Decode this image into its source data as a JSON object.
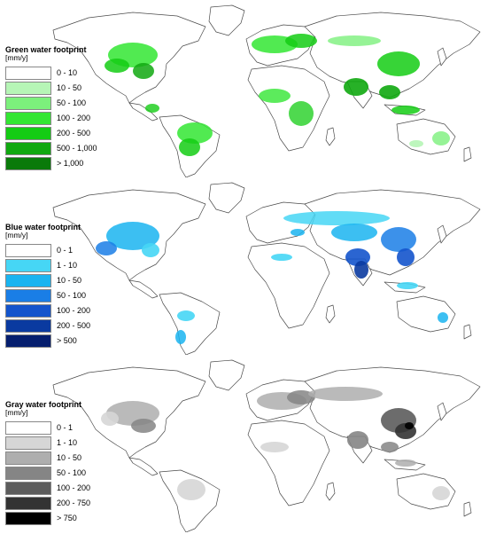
{
  "panels": [
    {
      "key": "green",
      "legend_title": "Green water footprint",
      "legend_unit": "[mm/y]",
      "classes": [
        {
          "label": "0 - 10",
          "color": "#ffffff"
        },
        {
          "label": "10 - 50",
          "color": "#b6f5b6"
        },
        {
          "label": "50 - 100",
          "color": "#7cf07c"
        },
        {
          "label": "100 - 200",
          "color": "#33e633"
        },
        {
          "label": "200 - 500",
          "color": "#14cc14"
        },
        {
          "label": "500 - 1,000",
          "color": "#10a810"
        },
        {
          "label": "> 1,000",
          "color": "#0a7a0a"
        }
      ]
    },
    {
      "key": "blue",
      "legend_title": "Blue water footprint",
      "legend_unit": "[mm/y]",
      "classes": [
        {
          "label": "0 - 1",
          "color": "#ffffff"
        },
        {
          "label": "1 - 10",
          "color": "#46d6f5"
        },
        {
          "label": "10 - 50",
          "color": "#1ab4f0"
        },
        {
          "label": "50 - 100",
          "color": "#1a7ee6"
        },
        {
          "label": "100 - 200",
          "color": "#1454cc"
        },
        {
          "label": "200 - 500",
          "color": "#0a3aa0"
        },
        {
          "label": "> 500",
          "color": "#051e6e"
        }
      ]
    },
    {
      "key": "gray",
      "legend_title": "Gray water footprint",
      "legend_unit": "[mm/y]",
      "classes": [
        {
          "label": "0 - 1",
          "color": "#ffffff"
        },
        {
          "label": "1 - 10",
          "color": "#d6d6d6"
        },
        {
          "label": "10 - 50",
          "color": "#aeaeae"
        },
        {
          "label": "50 - 100",
          "color": "#858585"
        },
        {
          "label": "100 - 200",
          "color": "#5c5c5c"
        },
        {
          "label": "200 - 750",
          "color": "#333333"
        },
        {
          "label": "> 750",
          "color": "#000000"
        }
      ]
    }
  ]
}
